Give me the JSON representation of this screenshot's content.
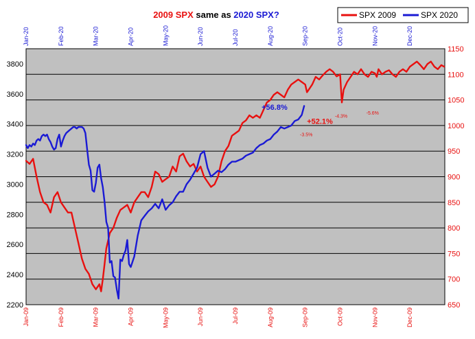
{
  "chart_data": {
    "type": "line",
    "title_parts": [
      {
        "text": "2009 SPX",
        "color": "#e8100f"
      },
      {
        "text": " same as ",
        "color": "#000000"
      },
      {
        "text": "2020 SPX?",
        "color": "#1a1ad4"
      }
    ],
    "colors": {
      "spx2009": "#e8100f",
      "spx2020": "#1a1ad4",
      "plot_bg": "#c0c0c0",
      "grid": "#000000"
    },
    "legend": {
      "position": "top-right",
      "entries": [
        {
          "label": "SPX 2009",
          "color": "#e8100f"
        },
        {
          "label": "SPX 2020",
          "color": "#1a1ad4"
        }
      ]
    },
    "grid": true,
    "y_left": {
      "min": 2200,
      "max": 3900,
      "ticks": [
        2200,
        2400,
        2600,
        2800,
        3000,
        3200,
        3400,
        3600,
        3800
      ]
    },
    "y_right": {
      "min": 650,
      "max": 1150,
      "ticks": [
        650,
        700,
        750,
        800,
        850,
        900,
        950,
        1000,
        1050,
        1100,
        1150
      ]
    },
    "x_top_labels": [
      "Jan-20",
      "Feb-20",
      "Mar-20",
      "Apr-20",
      "May-20",
      "Jun-20",
      "Jul-20",
      "Aug-20",
      "Sep-20",
      "Oct-20",
      "Nov-20",
      "Dec-20"
    ],
    "x_bottom_labels": [
      "Jan-09",
      "Feb-09",
      "Mar-09",
      "Apr-09",
      "May-09",
      "Jun-09",
      "Jul-09",
      "Aug-09",
      "Sep-09",
      "Oct-09",
      "Nov-09",
      "Dec-09"
    ],
    "series": [
      {
        "name": "SPX 2009",
        "axis": "right",
        "color": "#e8100f",
        "x_month": [
          0,
          0.1,
          0.2,
          0.3,
          0.4,
          0.5,
          0.6,
          0.7,
          0.8,
          0.9,
          1.0,
          1.1,
          1.2,
          1.3,
          1.4,
          1.5,
          1.6,
          1.7,
          1.8,
          1.9,
          2.0,
          2.1,
          2.15,
          2.2,
          2.25,
          2.3,
          2.4,
          2.5,
          2.6,
          2.7,
          2.8,
          2.9,
          3.0,
          3.1,
          3.2,
          3.3,
          3.4,
          3.5,
          3.6,
          3.7,
          3.8,
          3.9,
          4.0,
          4.1,
          4.2,
          4.3,
          4.4,
          4.5,
          4.6,
          4.7,
          4.8,
          4.9,
          5.0,
          5.1,
          5.2,
          5.3,
          5.4,
          5.5,
          5.6,
          5.7,
          5.8,
          5.9,
          6.0,
          6.1,
          6.2,
          6.3,
          6.4,
          6.5,
          6.6,
          6.7,
          6.8,
          6.9,
          7.0,
          7.1,
          7.2,
          7.3,
          7.4,
          7.5,
          7.6,
          7.7,
          7.8,
          7.9,
          8.0,
          8.05,
          8.1,
          8.2,
          8.3,
          8.4,
          8.5,
          8.6,
          8.7,
          8.8,
          8.9,
          9.0,
          9.05,
          9.1,
          9.2,
          9.3,
          9.4,
          9.5,
          9.6,
          9.7,
          9.8,
          9.9,
          10.0,
          10.05,
          10.1,
          10.2,
          10.3,
          10.4,
          10.5,
          10.6,
          10.7,
          10.8,
          10.9,
          11.0,
          11.1,
          11.2,
          11.3,
          11.4,
          11.5,
          11.6,
          11.7,
          11.8,
          11.9,
          11.98
        ],
        "values": [
          931,
          925,
          935,
          900,
          870,
          850,
          845,
          830,
          860,
          870,
          850,
          840,
          830,
          830,
          800,
          770,
          740,
          720,
          710,
          690,
          680,
          690,
          676,
          700,
          730,
          760,
          790,
          800,
          820,
          835,
          840,
          845,
          830,
          850,
          860,
          870,
          870,
          860,
          880,
          910,
          905,
          890,
          895,
          900,
          920,
          910,
          940,
          945,
          930,
          920,
          925,
          910,
          920,
          900,
          890,
          880,
          885,
          900,
          930,
          950,
          960,
          980,
          985,
          990,
          1005,
          1010,
          1020,
          1015,
          1020,
          1015,
          1030,
          1045,
          1050,
          1060,
          1065,
          1060,
          1055,
          1070,
          1080,
          1085,
          1090,
          1085,
          1080,
          1065,
          1070,
          1080,
          1095,
          1090,
          1098,
          1105,
          1110,
          1105,
          1096,
          1100,
          1045,
          1070,
          1085,
          1095,
          1105,
          1100,
          1110,
          1100,
          1095,
          1105,
          1102,
          1095,
          1110,
          1100,
          1105,
          1108,
          1100,
          1095,
          1105,
          1110,
          1105,
          1115,
          1120,
          1125,
          1118,
          1110,
          1120,
          1125,
          1115,
          1110,
          1118,
          1115
        ],
        "annotations": [
          {
            "text": "+52.1%",
            "x_month": 8.05,
            "y": 1003,
            "size": "big"
          },
          {
            "text": "-3.5%",
            "x_month": 7.85,
            "y": 979,
            "size": "small"
          },
          {
            "text": "-4.3%",
            "x_month": 8.85,
            "y": 1015,
            "size": "small"
          },
          {
            "text": "-5.6%",
            "x_month": 9.75,
            "y": 1021,
            "size": "small"
          }
        ]
      },
      {
        "name": "SPX 2020",
        "axis": "left",
        "color": "#1a1ad4",
        "x_month": [
          0,
          0.05,
          0.1,
          0.15,
          0.2,
          0.25,
          0.3,
          0.35,
          0.4,
          0.45,
          0.5,
          0.55,
          0.6,
          0.65,
          0.7,
          0.75,
          0.8,
          0.85,
          0.9,
          0.95,
          1.0,
          1.05,
          1.1,
          1.15,
          1.2,
          1.25,
          1.3,
          1.35,
          1.4,
          1.45,
          1.5,
          1.55,
          1.6,
          1.65,
          1.7,
          1.75,
          1.8,
          1.85,
          1.9,
          1.95,
          2.0,
          2.05,
          2.1,
          2.15,
          2.2,
          2.25,
          2.3,
          2.35,
          2.4,
          2.45,
          2.5,
          2.55,
          2.6,
          2.65,
          2.7,
          2.75,
          2.8,
          2.85,
          2.9,
          2.95,
          3.0,
          3.1,
          3.2,
          3.3,
          3.4,
          3.5,
          3.6,
          3.7,
          3.8,
          3.9,
          4.0,
          4.1,
          4.2,
          4.3,
          4.4,
          4.5,
          4.6,
          4.7,
          4.8,
          4.9,
          5.0,
          5.1,
          5.2,
          5.3,
          5.4,
          5.5,
          5.6,
          5.7,
          5.8,
          5.9,
          6.0,
          6.1,
          6.2,
          6.3,
          6.4,
          6.5,
          6.6,
          6.7,
          6.8,
          6.9,
          7.0,
          7.1,
          7.2,
          7.3,
          7.4,
          7.5,
          7.6,
          7.7,
          7.8,
          7.9,
          7.97
        ],
        "values": [
          3260,
          3240,
          3260,
          3250,
          3270,
          3260,
          3290,
          3300,
          3290,
          3320,
          3330,
          3320,
          3330,
          3300,
          3280,
          3250,
          3230,
          3240,
          3300,
          3330,
          3250,
          3290,
          3320,
          3340,
          3350,
          3360,
          3370,
          3380,
          3380,
          3370,
          3380,
          3380,
          3380,
          3370,
          3340,
          3230,
          3130,
          3090,
          2960,
          2950,
          3010,
          3110,
          3130,
          3040,
          2980,
          2880,
          2750,
          2710,
          2480,
          2490,
          2390,
          2380,
          2300,
          2240,
          2500,
          2490,
          2530,
          2560,
          2630,
          2470,
          2450,
          2520,
          2660,
          2760,
          2790,
          2820,
          2840,
          2870,
          2840,
          2900,
          2830,
          2860,
          2880,
          2920,
          2950,
          2950,
          3000,
          3030,
          3070,
          3110,
          3200,
          3220,
          3110,
          3050,
          3070,
          3090,
          3080,
          3100,
          3130,
          3150,
          3150,
          3160,
          3170,
          3190,
          3200,
          3210,
          3240,
          3260,
          3270,
          3290,
          3300,
          3330,
          3350,
          3380,
          3370,
          3380,
          3390,
          3420,
          3430,
          3460,
          3520
        ],
        "annotations": [
          {
            "text": "+56.8%",
            "x_month": 6.75,
            "y": 3495,
            "size": "big"
          }
        ]
      }
    ]
  }
}
